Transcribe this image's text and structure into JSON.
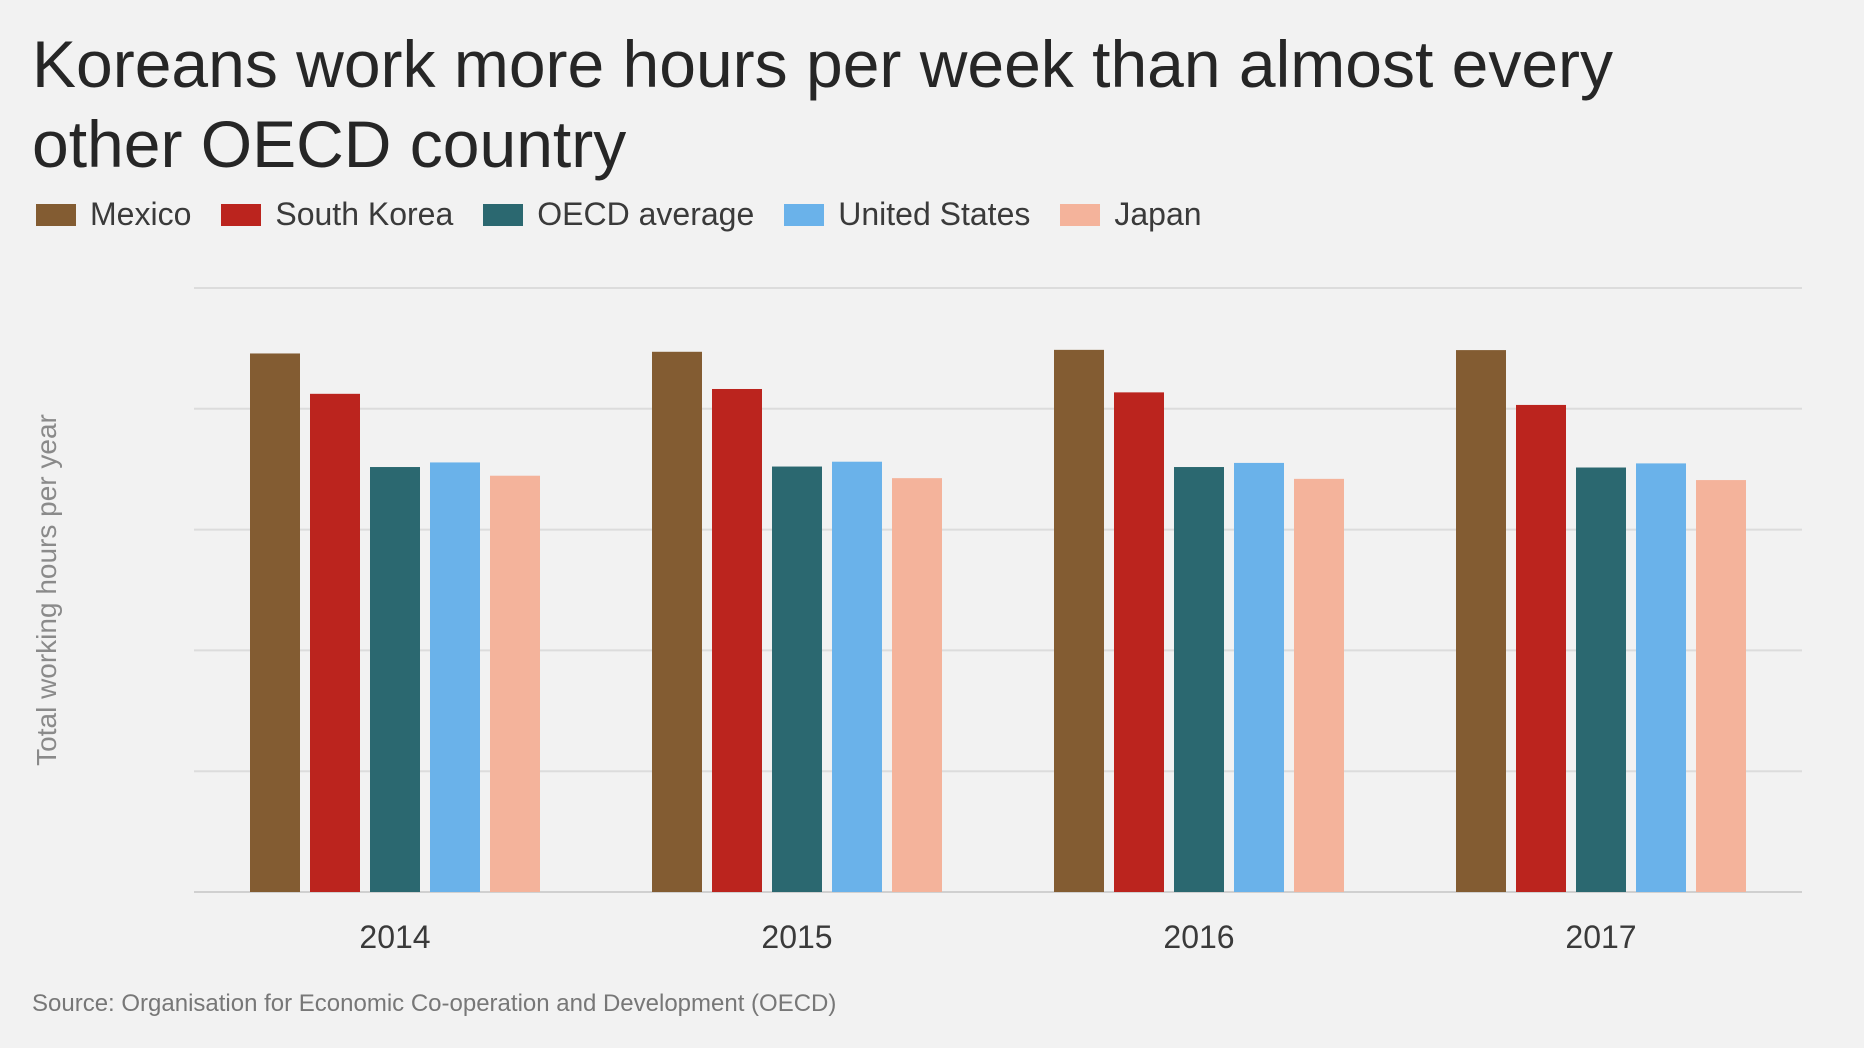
{
  "chart_data": {
    "type": "bar",
    "title": "Koreans work more hours per week than almost every other OECD country",
    "ylabel": "Total working hours per year",
    "xlabel": "",
    "categories": [
      "2014",
      "2015",
      "2016",
      "2017"
    ],
    "ylim": [
      0,
      2500
    ],
    "grid": true,
    "legend_position": "top-left",
    "series": [
      {
        "name": "Mexico",
        "color": "#835c32",
        "values": [
          2229,
          2236,
          2244,
          2243
        ]
      },
      {
        "name": "South Korea",
        "color": "#bb241e",
        "values": [
          2062,
          2082,
          2068,
          2016
        ]
      },
      {
        "name": "OECD average",
        "color": "#2b6870",
        "values": [
          1759,
          1761,
          1759,
          1757
        ]
      },
      {
        "name": "United States",
        "color": "#6ab2ea",
        "values": [
          1778,
          1781,
          1776,
          1774
        ]
      },
      {
        "name": "Japan",
        "color": "#f4b39b",
        "values": [
          1723,
          1713,
          1710,
          1705
        ]
      }
    ],
    "source": "Source: Organisation for Economic Co-operation and Development (OECD)"
  }
}
